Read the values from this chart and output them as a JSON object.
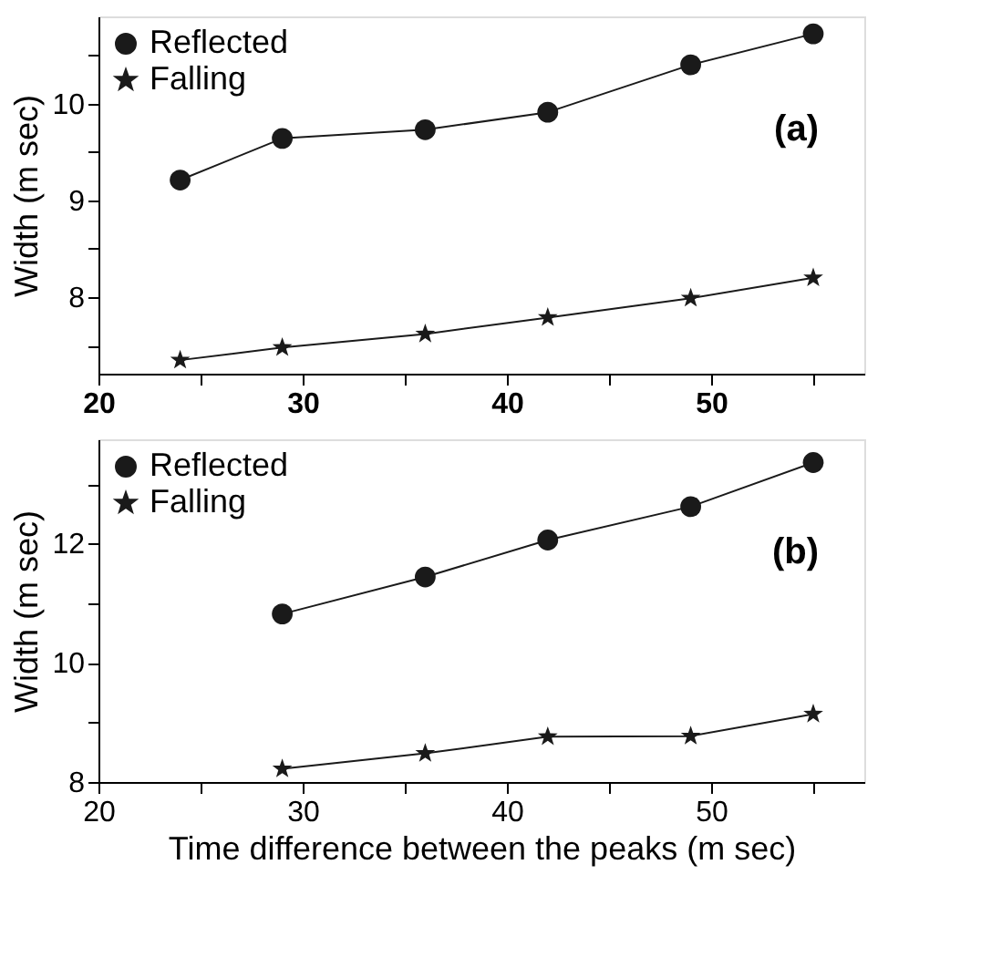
{
  "chart_data": [
    {
      "type": "line",
      "ylabel": "Width (m sec)",
      "x": [
        24,
        29,
        36,
        42,
        49,
        55
      ],
      "xlim": [
        20,
        57.5
      ],
      "xticks": [
        20,
        {
          "value": 25,
          "label": null
        },
        30,
        {
          "value": 35,
          "label": null
        },
        40,
        {
          "value": 45,
          "label": null
        },
        50,
        {
          "value": 55,
          "label": null
        }
      ],
      "ylim": [
        7.21,
        10.9
      ],
      "yticks": [
        {
          "value": 7.5,
          "label": null
        },
        8,
        {
          "value": 8.5,
          "label": null
        },
        9,
        {
          "value": 9.5,
          "label": null
        },
        10,
        {
          "value": 10.5,
          "label": null
        }
      ],
      "grid": false,
      "legend": "top left",
      "annotations": [
        "(a)"
      ],
      "series": [
        {
          "name": "Reflected",
          "color": "#1a1a1a",
          "marker": "circle",
          "values": [
            9.21,
            9.64,
            9.73,
            9.91,
            10.4,
            10.72
          ]
        },
        {
          "name": "Falling",
          "color": "#1a1a1a",
          "marker": "star",
          "values": [
            7.35,
            7.48,
            7.62,
            7.79,
            7.99,
            8.2
          ]
        }
      ]
    },
    {
      "type": "line",
      "xlabel": "Time difference between the peaks (m sec)",
      "ylabel": "Width (m sec)",
      "x": [
        29,
        36,
        42,
        49,
        55
      ],
      "xlim": [
        20,
        57.5
      ],
      "xticks": [
        20,
        {
          "value": 25,
          "label": null
        },
        30,
        {
          "value": 35,
          "label": null
        },
        40,
        {
          "value": 45,
          "label": null
        },
        50,
        {
          "value": 55,
          "label": null
        }
      ],
      "ylim": [
        8,
        13.75
      ],
      "yticks": [
        8,
        {
          "value": 9,
          "label": null
        },
        10,
        {
          "value": 11,
          "label": null
        },
        12,
        {
          "value": 13,
          "label": null
        }
      ],
      "grid": false,
      "legend": "top left",
      "annotations": [
        "(b)"
      ],
      "series": [
        {
          "name": "Reflected",
          "color": "#1a1a1a",
          "marker": "circle",
          "values": [
            10.82,
            11.44,
            12.06,
            12.62,
            13.36
          ]
        },
        {
          "name": "Falling",
          "color": "#1a1a1a",
          "marker": "star",
          "values": [
            8.22,
            8.48,
            8.76,
            8.77,
            9.14
          ]
        }
      ]
    }
  ]
}
